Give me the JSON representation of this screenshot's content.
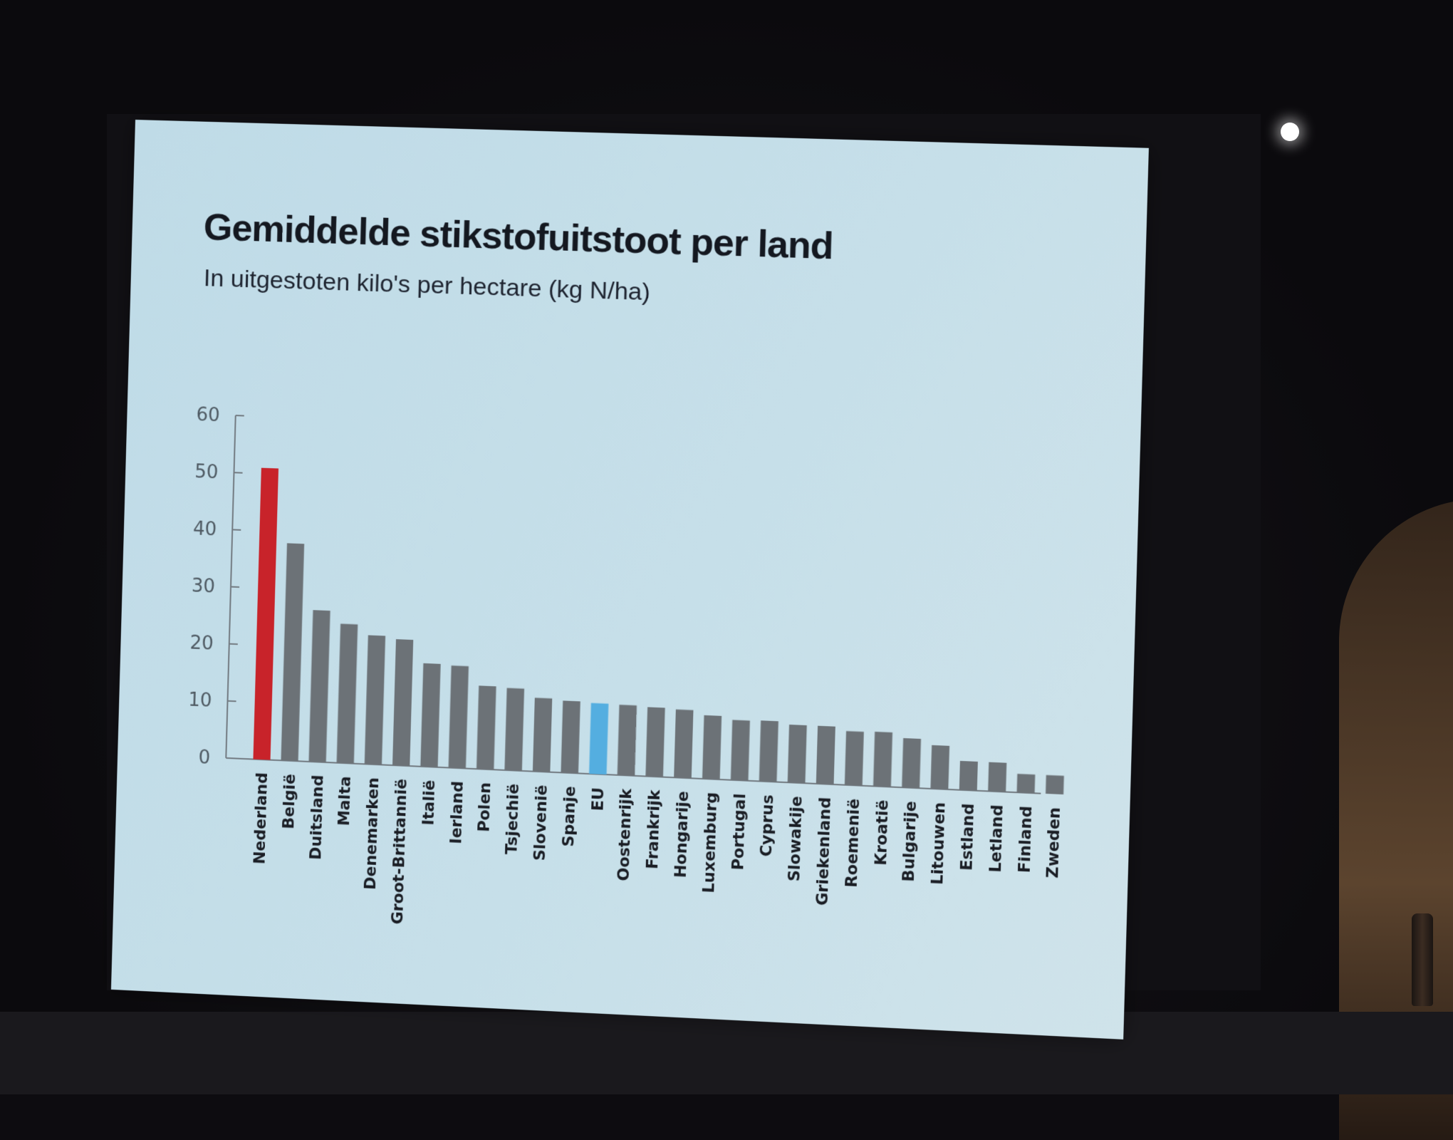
{
  "colors": {
    "highlight": "#c8232a",
    "eu": "#54aee0",
    "default_bar": "#6c7277",
    "axis": "#737b82"
  },
  "chart_data": {
    "type": "bar",
    "title": "Gemiddelde stikstofuitstoot per land",
    "subtitle": "In uitgestoten kilo's per hectare (kg N/ha)",
    "xlabel": "",
    "ylabel": "",
    "ylim": [
      0,
      60
    ],
    "yticks": [
      0,
      10,
      20,
      30,
      40,
      50,
      60
    ],
    "grid": false,
    "categories": [
      "Nederland",
      "België",
      "Duitsland",
      "Malta",
      "Denemarken",
      "Groot-Brittannië",
      "Italië",
      "Ierland",
      "Polen",
      "Tsjechië",
      "Slovenië",
      "Spanje",
      "EU",
      "Oostenrijk",
      "Frankrijk",
      "Hongarije",
      "Luxemburg",
      "Portugal",
      "Cyprus",
      "Slowakije",
      "Griekenland",
      "Roemenië",
      "Kroatië",
      "Bulgarije",
      "Litouwen",
      "Estland",
      "Letland",
      "Finland",
      "Zweden"
    ],
    "values": [
      51,
      38,
      26.5,
      24.3,
      22.5,
      22,
      18,
      17.8,
      14.5,
      14.3,
      12.8,
      12.5,
      12.3,
      12.2,
      12,
      11.8,
      11,
      10.4,
      10.5,
      10,
      10,
      9.3,
      9.4,
      8.5,
      7.5,
      5,
      5,
      3.2,
      3.2
    ],
    "highlights": {
      "Nederland": "highlight",
      "EU": "eu"
    }
  }
}
